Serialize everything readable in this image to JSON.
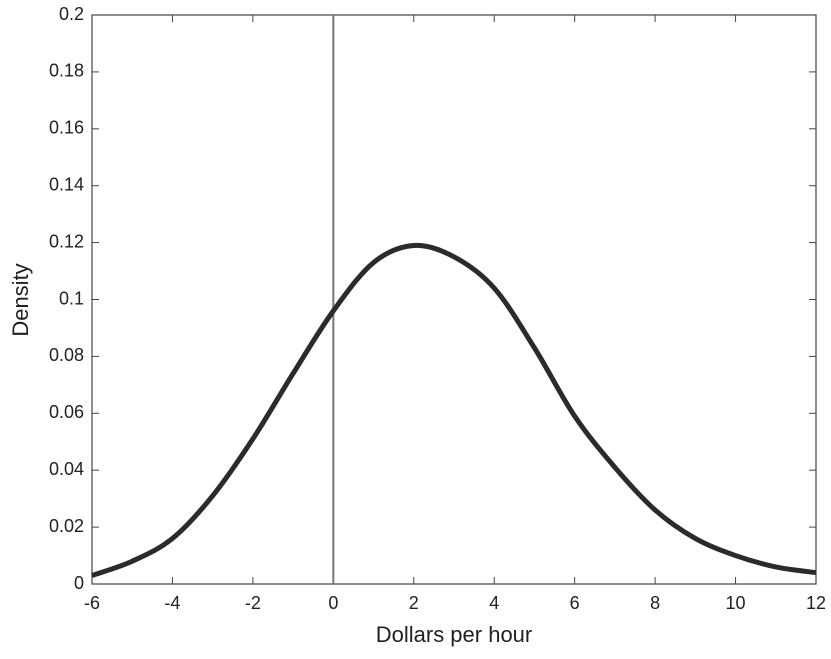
{
  "chart_data": {
    "type": "line",
    "x_label": "Dollars per hour",
    "y_label": "Density",
    "x": [
      -6,
      -5,
      -4,
      -3,
      -2,
      -1,
      0,
      1,
      2,
      3,
      4,
      5,
      6,
      7,
      8,
      9,
      10,
      11,
      12
    ],
    "series": [
      {
        "color": "#2b2b2b",
        "values": [
          0.003,
          0.008,
          0.016,
          0.031,
          0.051,
          0.074,
          0.096,
          0.113,
          0.119,
          0.115,
          0.104,
          0.083,
          0.059,
          0.041,
          0.026,
          0.016,
          0.01,
          0.006,
          0.004
        ]
      }
    ],
    "vlines": [
      0
    ],
    "vline_color": "#777777",
    "xlim": [
      -6,
      12
    ],
    "xticks": [
      -6,
      -4,
      -2,
      0,
      2,
      4,
      6,
      8,
      10,
      12
    ],
    "ylim": [
      0,
      0.2
    ],
    "yticks": [
      0,
      0.02,
      0.04,
      0.06,
      0.08,
      0.1,
      0.12,
      0.14,
      0.16,
      0.18,
      0.2
    ],
    "grid": false
  }
}
